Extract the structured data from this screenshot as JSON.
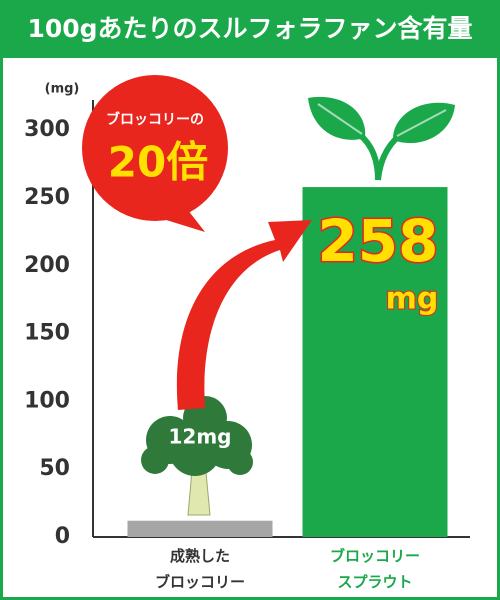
{
  "chart_data": {
    "type": "bar",
    "title": "100gあたりのスルフォラファン含有量",
    "y_unit": "(mg)",
    "categories": [
      "成熟した\nブロッコリー",
      "ブロッコリー\nスプラウト"
    ],
    "values": [
      12,
      258
    ],
    "value_labels": [
      "12mg",
      "258"
    ],
    "value_unit_label": "mg",
    "colors": [
      "#a6a6a6",
      "#1aa84a"
    ],
    "ylim": [
      0,
      320
    ],
    "yticks": [
      0,
      50,
      100,
      150,
      200,
      250,
      300
    ],
    "grid": false,
    "annotation": {
      "line1": "ブロッコリーの",
      "line2": "20倍"
    }
  }
}
